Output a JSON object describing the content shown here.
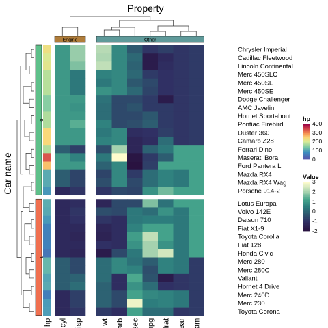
{
  "chart_data": {
    "type": "heatmap",
    "title": "Property",
    "ylabel": "Car name",
    "column_groups": [
      {
        "name": "Engine",
        "columns": [
          "cyl",
          "disp"
        ],
        "color": "#b07d3a"
      },
      {
        "name": "Other",
        "columns": [
          "wt",
          "carb",
          "qsec",
          "mpg",
          "drat",
          "gear",
          "am"
        ],
        "color": "#5f9a9a"
      }
    ],
    "columns": [
      "cyl",
      "disp",
      "wt",
      "carb",
      "qsec",
      "mpg",
      "drat",
      "gear",
      "am"
    ],
    "row_groups": [
      {
        "name": "0",
        "color": "#5ec08a",
        "rows": [
          "Chrysler Imperial",
          "Cadillac Fleetwood",
          "Lincoln Continental",
          "Merc 450SLC",
          "Merc 450SL",
          "Merc 450SE",
          "Dodge Challenger",
          "AMC Javelin",
          "Hornet Sportabout",
          "Pontiac Firebird",
          "Duster 360",
          "Camaro Z28",
          "Ferrari Dino",
          "Maserati Bora",
          "Ford Pantera L",
          "Mazda RX4",
          "Mazda RX4 Wag",
          "Porsche 914-2"
        ]
      },
      {
        "name": "1",
        "color": "#f07050",
        "rows": [
          "Lotus Europa",
          "Volvo 142E",
          "Datsun 710",
          "Fiat X1-9",
          "Toyota Corolla",
          "Fiat 128",
          "Honda Civic",
          "Merc 280",
          "Merc 280C",
          "Valiant",
          "Hornet 4 Drive",
          "Merc 240D",
          "Merc 230",
          "Toyota Corona"
        ]
      }
    ],
    "hp": [
      230,
      205,
      215,
      180,
      180,
      180,
      150,
      150,
      175,
      175,
      245,
      245,
      175,
      335,
      264,
      110,
      110,
      91,
      113,
      109,
      93,
      66,
      65,
      66,
      52,
      123,
      123,
      105,
      110,
      62,
      95,
      97
    ],
    "values": [
      [
        1.0,
        1.9,
        2.2,
        0.7,
        -0.2,
        -0.9,
        -0.7,
        -0.9,
        -0.8
      ],
      [
        1.0,
        1.9,
        2.1,
        0.7,
        0.1,
        -1.6,
        -1.2,
        -0.9,
        -0.8
      ],
      [
        1.0,
        1.7,
        2.3,
        0.7,
        0.0,
        -1.6,
        -1.1,
        -0.9,
        -0.8
      ],
      [
        1.0,
        0.4,
        0.6,
        0.7,
        0.1,
        -0.8,
        -1.0,
        -0.9,
        -0.8
      ],
      [
        1.0,
        0.4,
        0.4,
        0.7,
        -0.2,
        -0.5,
        -1.0,
        -0.9,
        -0.8
      ],
      [
        1.0,
        0.4,
        0.9,
        0.7,
        0.1,
        -0.6,
        -1.0,
        -0.9,
        -0.8
      ],
      [
        1.0,
        1.0,
        0.3,
        -0.5,
        -0.5,
        -0.8,
        -1.6,
        -0.9,
        -0.8
      ],
      [
        1.0,
        0.9,
        0.2,
        -0.5,
        -0.3,
        -0.8,
        -0.8,
        -0.9,
        -0.8
      ],
      [
        1.0,
        1.0,
        0.2,
        -0.5,
        -0.5,
        -0.2,
        -0.8,
        -0.9,
        -0.8
      ],
      [
        1.0,
        1.4,
        0.6,
        -0.5,
        -0.4,
        -0.1,
        -0.8,
        -0.9,
        -0.8
      ],
      [
        1.0,
        1.0,
        0.4,
        0.7,
        -1.1,
        -1.0,
        -0.7,
        -0.9,
        -0.8
      ],
      [
        1.0,
        1.0,
        0.6,
        0.7,
        -1.3,
        -1.1,
        0.2,
        -0.9,
        -0.8
      ],
      [
        -0.1,
        -0.7,
        -0.4,
        2.0,
        -1.3,
        0.0,
        0.4,
        1.2,
        1.2
      ],
      [
        1.0,
        0.6,
        0.4,
        3.2,
        -1.8,
        -0.8,
        -0.1,
        1.2,
        1.2
      ],
      [
        1.0,
        1.0,
        0.0,
        0.7,
        -1.9,
        -0.7,
        1.2,
        1.2,
        1.2
      ],
      [
        -0.1,
        -0.6,
        -0.6,
        0.7,
        -0.8,
        0.2,
        0.6,
        0.4,
        1.2
      ],
      [
        -0.1,
        -0.6,
        -0.4,
        0.7,
        -0.5,
        0.2,
        0.6,
        0.4,
        1.2
      ],
      [
        -1.2,
        -0.9,
        -0.9,
        -0.5,
        -0.6,
        0.9,
        1.6,
        1.2,
        1.2
      ],
      [
        -1.2,
        -1.1,
        -1.3,
        -0.5,
        -0.5,
        1.7,
        0.3,
        1.2,
        1.2
      ],
      [
        -1.2,
        -0.9,
        -0.4,
        -0.5,
        0.4,
        0.2,
        0.9,
        0.4,
        1.2
      ],
      [
        -1.2,
        -1.0,
        -0.9,
        -1.1,
        0.4,
        0.5,
        0.5,
        0.4,
        1.2
      ],
      [
        -1.2,
        -1.2,
        -1.3,
        -1.1,
        0.6,
        1.2,
        1.2,
        0.4,
        1.2
      ],
      [
        -1.2,
        -1.3,
        -1.4,
        -1.1,
        1.1,
        2.3,
        1.2,
        0.4,
        1.2
      ],
      [
        -1.2,
        -1.2,
        -1.0,
        -1.1,
        0.9,
        2.0,
        0.9,
        0.4,
        1.2
      ],
      [
        -1.2,
        -1.3,
        -1.6,
        -0.5,
        0.4,
        2.0,
        2.5,
        0.4,
        1.2
      ],
      [
        -0.1,
        -0.5,
        0.2,
        0.7,
        0.3,
        -0.1,
        0.6,
        0.4,
        -0.8
      ],
      [
        -0.1,
        -0.5,
        0.2,
        0.7,
        0.6,
        -0.4,
        0.6,
        0.4,
        -0.8
      ],
      [
        -0.1,
        0.0,
        0.2,
        -1.1,
        1.3,
        -0.3,
        -1.6,
        -0.9,
        -0.8
      ],
      [
        -0.1,
        0.2,
        -0.0,
        -1.1,
        0.9,
        0.2,
        -1.0,
        -0.9,
        -0.8
      ],
      [
        -1.2,
        -0.7,
        0.0,
        -0.5,
        1.2,
        0.7,
        0.6,
        0.4,
        -0.8
      ],
      [
        -1.2,
        -0.7,
        -0.0,
        -0.5,
        2.8,
        0.5,
        0.6,
        0.4,
        -0.8
      ],
      [
        -1.2,
        -0.9,
        -0.8,
        -1.1,
        1.2,
        0.2,
        0.2,
        -0.9,
        -0.8
      ]
    ],
    "legends": [
      {
        "title": "hp",
        "ticks": [
          "400",
          "300",
          "200",
          "100",
          "0"
        ],
        "range": [
          0,
          400
        ]
      },
      {
        "title": "Value",
        "ticks": [
          "3",
          "2",
          "1",
          "0",
          "-1",
          "-2"
        ],
        "range": [
          -2,
          3
        ]
      }
    ]
  }
}
